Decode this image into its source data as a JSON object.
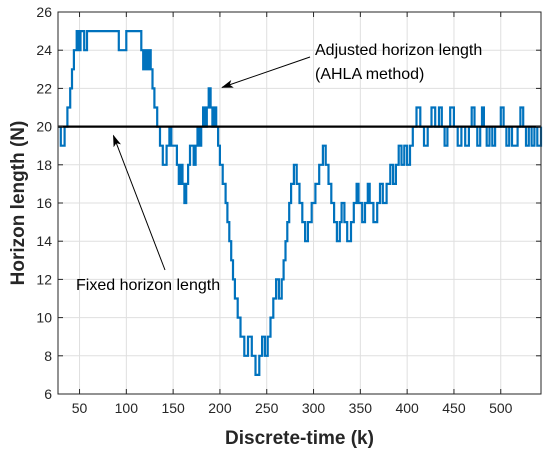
{
  "chart_data": {
    "type": "line",
    "xlabel": "Discrete-time (k)",
    "ylabel": "Horizon length (N)",
    "xlim": [
      27,
      543
    ],
    "ylim": [
      6,
      26
    ],
    "xticks": [
      50,
      100,
      150,
      200,
      250,
      300,
      350,
      400,
      450,
      500
    ],
    "yticks": [
      6,
      8,
      10,
      12,
      14,
      16,
      18,
      20,
      22,
      24,
      26
    ],
    "grid": true,
    "series": [
      {
        "label_ref": "annotations.1",
        "color": "#0072BD",
        "style": "step",
        "x": [
          27,
          30,
          34,
          37,
          40,
          42,
          44,
          47,
          49,
          51,
          55,
          58,
          63,
          70,
          80,
          92,
          100,
          110,
          116,
          118,
          120,
          122,
          124,
          126,
          128,
          130,
          133,
          136,
          139,
          143,
          146,
          148,
          150,
          152,
          154,
          156,
          158,
          160,
          162,
          164,
          166,
          168,
          170,
          172,
          174,
          176,
          178,
          180,
          182,
          184,
          186,
          188,
          190,
          192,
          194,
          196,
          198,
          200,
          203,
          206,
          208,
          210,
          212,
          214,
          216,
          219,
          222,
          226,
          230,
          234,
          238,
          242,
          245,
          248,
          251,
          254,
          257,
          260,
          263,
          266,
          268,
          270,
          272,
          274,
          276,
          279,
          282,
          285,
          288,
          291,
          294,
          298,
          302,
          306,
          310,
          313,
          316,
          319,
          322,
          325,
          328,
          330,
          333,
          336,
          340,
          343,
          346,
          348,
          352,
          355,
          358,
          360,
          364,
          368,
          371,
          374,
          378,
          382,
          385,
          388,
          391,
          394,
          397,
          400,
          403,
          406,
          410,
          414,
          418,
          422,
          426,
          430,
          434,
          437,
          440,
          443,
          446,
          450,
          454,
          458,
          462,
          466,
          469,
          472,
          475,
          478,
          480,
          482,
          485,
          488,
          491,
          494,
          497,
          500,
          503,
          506,
          509,
          512,
          515,
          518,
          521,
          524,
          527,
          530,
          533,
          536,
          539,
          543
        ],
        "y": [
          20,
          19,
          20,
          21,
          22,
          23,
          24,
          25,
          24,
          25,
          24,
          25,
          25,
          25,
          25,
          24,
          25,
          25,
          24,
          23,
          24,
          23,
          24,
          23,
          22,
          21,
          20,
          19,
          18,
          19,
          20,
          19,
          19,
          19,
          18,
          17,
          18,
          17,
          16,
          17,
          18,
          19,
          19,
          18,
          19,
          20,
          19,
          20,
          21,
          20,
          21,
          22,
          21,
          20,
          21,
          20,
          19,
          18,
          17,
          16,
          15,
          14,
          13,
          12,
          11,
          10,
          9,
          8,
          9,
          8,
          7,
          8,
          9,
          8,
          9,
          10,
          11,
          12,
          11,
          12,
          13,
          14,
          15,
          16,
          17,
          18,
          17,
          16,
          15,
          14,
          15,
          16,
          17,
          18,
          19,
          18,
          17,
          16,
          15,
          14,
          15,
          16,
          15,
          14,
          15,
          16,
          17,
          16,
          15,
          16,
          17,
          16,
          15,
          16,
          17,
          16,
          17,
          18,
          17,
          18,
          19,
          18,
          19,
          18,
          19,
          20,
          21,
          20,
          19,
          20,
          21,
          20,
          21,
          20,
          19,
          20,
          21,
          20,
          19,
          20,
          19,
          20,
          21,
          20,
          19,
          20,
          21,
          20,
          19,
          20,
          19,
          20,
          20,
          21,
          20,
          19,
          20,
          19,
          19,
          20,
          21,
          20,
          19,
          20,
          19,
          20,
          19,
          20
        ]
      },
      {
        "label_ref": "annotations.0",
        "color": "#000000",
        "style": "line",
        "x": [
          27,
          543
        ],
        "y": [
          20,
          20
        ]
      }
    ],
    "annotations": [
      {
        "text": "Fixed horizon length",
        "arrow_to": [
          83,
          20
        ]
      },
      {
        "text": "Adjusted horizon length",
        "text2": "(AHLA method)",
        "arrow_to": [
          197,
          22
        ]
      }
    ]
  }
}
